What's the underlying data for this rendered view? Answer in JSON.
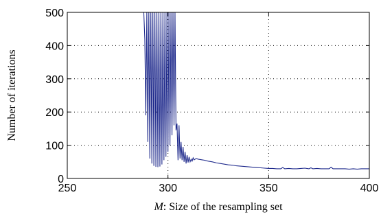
{
  "chart_data": {
    "type": "line",
    "title": "",
    "xlabel_math": "M",
    "xlabel_rest": ": Size of the resampling set",
    "ylabel": "Number of iterations",
    "xlim": [
      250,
      400
    ],
    "ylim": [
      0,
      500
    ],
    "xticks": [
      250,
      300,
      350,
      400
    ],
    "yticks": [
      0,
      100,
      200,
      300,
      400,
      500
    ],
    "grid": true,
    "line_color": "#1f2a8c",
    "series": [
      {
        "x": [
          250,
          288,
          288.5,
          289,
          289.5,
          290,
          290.5,
          291,
          291.5,
          292,
          292.5,
          293,
          293.5,
          294,
          294.5,
          295,
          295.5,
          296,
          296.5,
          297,
          297.5,
          298,
          298.5,
          299,
          299.5,
          300,
          300.5,
          301,
          301.5,
          302,
          302.5,
          303,
          303.5,
          304,
          304.5,
          305,
          305.5,
          306,
          306.5,
          307,
          307.5,
          308,
          308.5,
          309,
          309.5,
          310,
          310.5,
          311,
          311.5,
          312,
          312.5,
          313,
          313.5,
          314,
          315,
          316,
          317,
          318,
          320,
          322,
          324,
          326,
          328,
          330,
          332,
          334,
          336,
          338,
          340,
          342,
          344,
          346,
          348,
          350,
          352,
          354,
          356,
          357,
          358,
          360,
          362,
          364,
          366,
          368,
          370,
          371,
          372,
          374,
          376,
          378,
          380,
          381,
          382,
          384,
          386,
          388,
          390,
          392,
          394,
          396,
          398,
          400
        ],
        "y": [
          500,
          500,
          420,
          190,
          500,
          110,
          500,
          60,
          500,
          45,
          500,
          38,
          500,
          35,
          500,
          34,
          500,
          36,
          500,
          42,
          500,
          55,
          500,
          65,
          500,
          80,
          500,
          100,
          500,
          130,
          500,
          160,
          500,
          145,
          165,
          55,
          160,
          60,
          110,
          55,
          95,
          50,
          80,
          45,
          70,
          48,
          65,
          50,
          58,
          52,
          62,
          56,
          58,
          60,
          58,
          57,
          56,
          55,
          52,
          50,
          47,
          45,
          43,
          41,
          40,
          38,
          37,
          36,
          35,
          34,
          33,
          32,
          31,
          30,
          30,
          29,
          29,
          33,
          29,
          30,
          29,
          29,
          30,
          31,
          29,
          32,
          29,
          30,
          29,
          29,
          29,
          34,
          29,
          29,
          29,
          29,
          28,
          29,
          28,
          29,
          29,
          29
        ],
        "comment": ""
      }
    ]
  }
}
